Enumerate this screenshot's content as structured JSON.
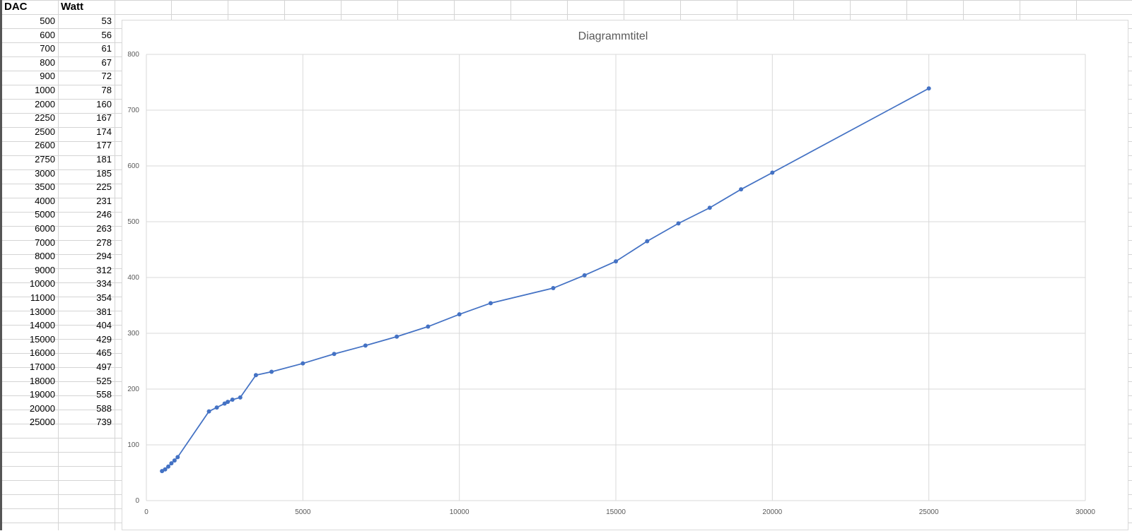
{
  "table": {
    "headers": [
      "DAC",
      "Watt"
    ],
    "rows": [
      [
        "500",
        "53"
      ],
      [
        "600",
        "56"
      ],
      [
        "700",
        "61"
      ],
      [
        "800",
        "67"
      ],
      [
        "900",
        "72"
      ],
      [
        "1000",
        "78"
      ],
      [
        "2000",
        "160"
      ],
      [
        "2250",
        "167"
      ],
      [
        "2500",
        "174"
      ],
      [
        "2600",
        "177"
      ],
      [
        "2750",
        "181"
      ],
      [
        "3000",
        "185"
      ],
      [
        "3500",
        "225"
      ],
      [
        "4000",
        "231"
      ],
      [
        "5000",
        "246"
      ],
      [
        "6000",
        "263"
      ],
      [
        "7000",
        "278"
      ],
      [
        "8000",
        "294"
      ],
      [
        "9000",
        "312"
      ],
      [
        "10000",
        "334"
      ],
      [
        "11000",
        "354"
      ],
      [
        "13000",
        "381"
      ],
      [
        "14000",
        "404"
      ],
      [
        "15000",
        "429"
      ],
      [
        "16000",
        "465"
      ],
      [
        "17000",
        "497"
      ],
      [
        "18000",
        "525"
      ],
      [
        "19000",
        "558"
      ],
      [
        "20000",
        "588"
      ],
      [
        "25000",
        "739"
      ]
    ]
  },
  "chart_data": {
    "type": "scatter",
    "title": "Diagrammtitel",
    "xlabel": "",
    "ylabel": "",
    "xlim": [
      0,
      30000
    ],
    "ylim": [
      0,
      800
    ],
    "xticks": [
      0,
      5000,
      10000,
      15000,
      20000,
      25000,
      30000
    ],
    "yticks": [
      0,
      100,
      200,
      300,
      400,
      500,
      600,
      700,
      800
    ],
    "grid": true,
    "legend": "none",
    "line_color": "#4472c4",
    "series": [
      {
        "x": [
          500,
          600,
          700,
          800,
          900,
          1000,
          2000,
          2250,
          2500,
          2600,
          2750,
          3000,
          3500,
          4000,
          5000,
          6000,
          7000,
          8000,
          9000,
          10000,
          11000,
          13000,
          14000,
          15000,
          16000,
          17000,
          18000,
          19000,
          20000,
          25000
        ],
        "y": [
          53,
          56,
          61,
          67,
          72,
          78,
          160,
          167,
          174,
          177,
          181,
          185,
          225,
          231,
          246,
          263,
          278,
          294,
          312,
          334,
          354,
          381,
          404,
          429,
          465,
          497,
          525,
          558,
          588,
          739
        ]
      }
    ]
  }
}
